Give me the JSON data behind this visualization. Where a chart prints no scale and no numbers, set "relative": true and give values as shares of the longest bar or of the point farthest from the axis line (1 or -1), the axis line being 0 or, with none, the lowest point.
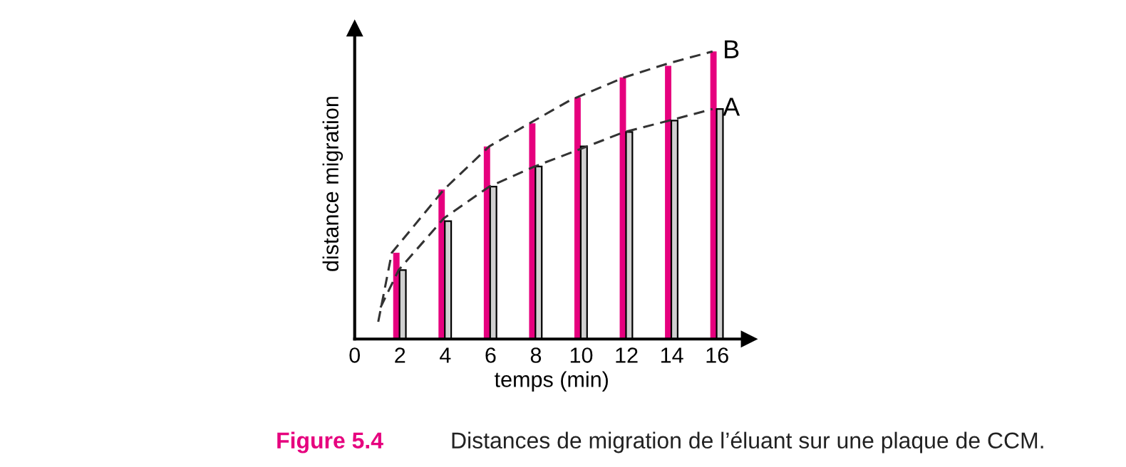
{
  "chart_data": {
    "type": "bar",
    "relative": true,
    "xlabel": "temps (min)",
    "ylabel": "distance migration",
    "xlim": [
      0,
      17.4
    ],
    "xticks": [
      0,
      2,
      4,
      6,
      8,
      10,
      12,
      14,
      16
    ],
    "series": [
      {
        "color": "#e6007e",
        "x": [
          1.84,
          3.84,
          5.84,
          7.84,
          9.84,
          11.84,
          13.84,
          15.84
        ],
        "values": [
          0.3,
          0.52,
          0.67,
          0.75,
          0.84,
          0.91,
          0.95,
          1.0
        ]
      },
      {
        "color": "#d0d0d0",
        "x": [
          2.12,
          4.12,
          6.12,
          8.12,
          10.12,
          12.12,
          14.12,
          16.12
        ],
        "values": [
          0.24,
          0.41,
          0.53,
          0.6,
          0.67,
          0.72,
          0.76,
          0.8
        ]
      },
      {
        "type": "line",
        "name": "B",
        "color": "#333333",
        "line_style": "dashed",
        "x": [
          1.04,
          1.64,
          3.94,
          5.94,
          7.94,
          9.5,
          11.9,
          13.9,
          15.8
        ],
        "values": [
          0.06,
          0.3,
          0.52,
          0.67,
          0.76,
          0.83,
          0.91,
          0.96,
          1.0
        ]
      },
      {
        "type": "line",
        "name": "A",
        "color": "#333333",
        "line_style": "dashed",
        "x": [
          1.14,
          1.94,
          3.94,
          5.94,
          7.94,
          9.94,
          11.9,
          13.9,
          15.8
        ],
        "values": [
          0.11,
          0.24,
          0.42,
          0.53,
          0.6,
          0.66,
          0.72,
          0.76,
          0.8
        ]
      }
    ],
    "annotations": [
      "Figure 5.4",
      "Distances de migration de l’éluant sur une plaque de CCM."
    ]
  }
}
